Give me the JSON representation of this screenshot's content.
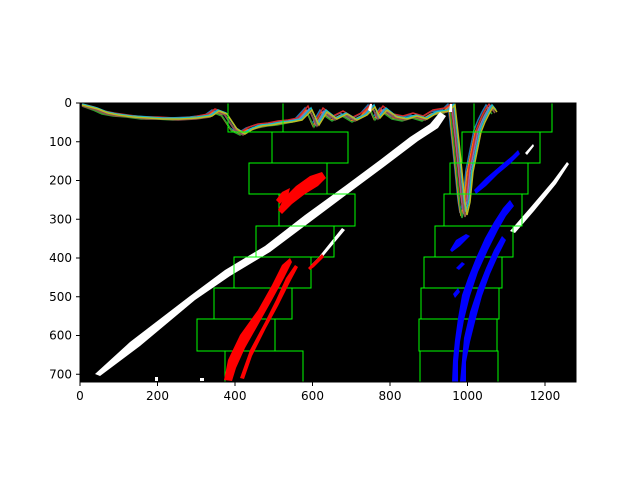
{
  "chart_data": {
    "type": "image",
    "xlim": [
      0,
      1280
    ],
    "ylim": [
      720,
      0
    ],
    "x_ticks": [
      {
        "value": 0,
        "label": "0"
      },
      {
        "value": 200,
        "label": "200"
      },
      {
        "value": 400,
        "label": "400"
      },
      {
        "value": 600,
        "label": "600"
      },
      {
        "value": 800,
        "label": "800"
      },
      {
        "value": 1000,
        "label": "1000"
      },
      {
        "value": 1200,
        "label": "1200"
      }
    ],
    "y_ticks": [
      {
        "value": 0,
        "label": "0"
      },
      {
        "value": 100,
        "label": "100"
      },
      {
        "value": 200,
        "label": "200"
      },
      {
        "value": 300,
        "label": "300"
      },
      {
        "value": 400,
        "label": "400"
      },
      {
        "value": 500,
        "label": "500"
      },
      {
        "value": 600,
        "label": "600"
      },
      {
        "value": 700,
        "label": "700"
      }
    ],
    "colors": {
      "background": "#000000",
      "windows": "#00ff00",
      "left_lane": "#ff0000",
      "right_lane": "#0000ff",
      "white_pixels": "#ffffff"
    },
    "left_windows": [
      {
        "x0": 300,
        "x1": 500,
        "y0": 560,
        "y1": 640
      },
      {
        "x0": 340,
        "x1": 540,
        "y0": 480,
        "y1": 560
      },
      {
        "x0": 360,
        "x1": 600,
        "y0": 400,
        "y1": 480
      },
      {
        "x0": 400,
        "x1": 660,
        "y0": 320,
        "y1": 400
      },
      {
        "x0": 440,
        "x1": 710,
        "y0": 240,
        "y1": 320
      },
      {
        "x0": 480,
        "x1": 640,
        "y0": 160,
        "y1": 240
      },
      {
        "x0": 490,
        "x1": 690,
        "y0": 80,
        "y1": 160
      },
      {
        "x0": 560,
        "x1": 780,
        "y0": 0,
        "y1": 80
      },
      {
        "x0": 300,
        "x1": 580,
        "y0": 640,
        "y1": 720
      }
    ],
    "right_windows": [
      {
        "x0": 880,
        "x1": 1080,
        "y0": 640,
        "y1": 720
      },
      {
        "x0": 875,
        "x1": 1075,
        "y0": 560,
        "y1": 640
      },
      {
        "x0": 880,
        "x1": 1080,
        "y0": 480,
        "y1": 560
      },
      {
        "x0": 890,
        "x1": 1090,
        "y0": 400,
        "y1": 480
      },
      {
        "x0": 900,
        "x1": 1120,
        "y0": 320,
        "y1": 400
      },
      {
        "x0": 940,
        "x1": 1140,
        "y0": 240,
        "y1": 320
      },
      {
        "x0": 950,
        "x1": 1150,
        "y0": 160,
        "y1": 240
      },
      {
        "x0": 980,
        "x1": 1180,
        "y0": 80,
        "y1": 160
      },
      {
        "x0": 1020,
        "x1": 1220,
        "y0": 0,
        "y1": 80
      }
    ]
  }
}
